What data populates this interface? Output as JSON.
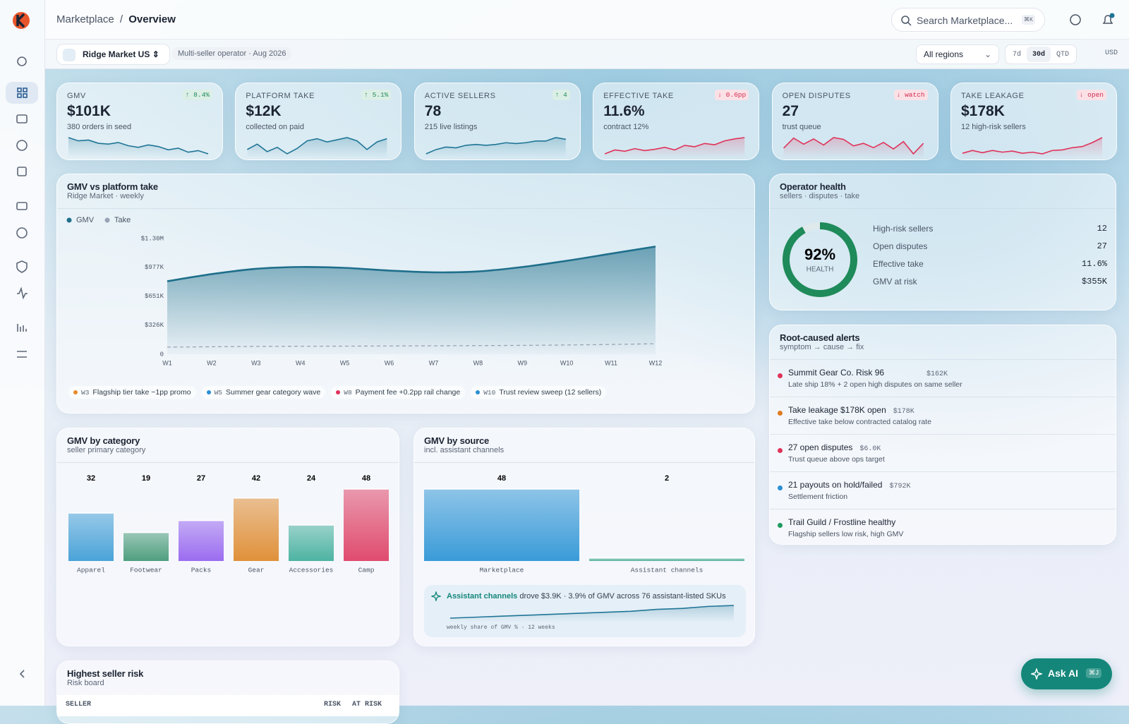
{
  "header": {
    "breadcrumb": [
      "Marketplace",
      "Overview"
    ],
    "separator": "/",
    "search": "Search Marketplace...",
    "search_key": "⌘K"
  },
  "toolbar": {
    "market": "Ridge Market US",
    "meta": "Multi-seller operator · Aug 2026",
    "region": "All regions",
    "ranges": [
      "7d",
      "30d",
      "QTD"
    ],
    "active_range": 1,
    "currency": "USD"
  },
  "kpis": [
    {
      "label": "GMV",
      "delta": "↑ 8.4%",
      "tone": "good",
      "value": "$101K",
      "sub": "380 orders in seed",
      "color": "#1f7596",
      "spark": [
        6.2,
        5.8,
        5.9,
        5.5,
        5.4,
        5.6,
        5.2,
        5.0,
        5.3,
        5.1,
        4.7,
        4.9,
        4.4,
        4.6,
        4.2
      ]
    },
    {
      "label": "PLATFORM TAKE",
      "delta": "↑ 5.1%",
      "tone": "good",
      "value": "$12K",
      "sub": "collected on paid",
      "color": "#1f7596",
      "spark": [
        4.8,
        5.3,
        4.6,
        5.0,
        4.4,
        4.9,
        5.6,
        5.8,
        5.5,
        5.7,
        5.9,
        5.6,
        4.8,
        5.5,
        5.8
      ]
    },
    {
      "label": "ACTIVE SELLERS",
      "delta": "↑ 4",
      "tone": "good",
      "value": "78",
      "sub": "215 live listings",
      "color": "#1f7596",
      "spark": [
        4.0,
        4.5,
        4.8,
        4.7,
        5.0,
        5.1,
        5.0,
        5.1,
        5.3,
        5.2,
        5.3,
        5.5,
        5.5,
        5.9,
        5.7
      ]
    },
    {
      "label": "EFFECTIVE TAKE",
      "delta": "↓ 0.6pp",
      "tone": "bad",
      "value": "11.6%",
      "sub": "contract 12%",
      "color": "#e0325a",
      "spark": [
        4.2,
        4.8,
        4.6,
        5.0,
        4.7,
        4.9,
        5.2,
        4.8,
        5.5,
        5.3,
        5.8,
        5.6,
        6.2,
        6.5,
        6.7
      ]
    },
    {
      "label": "OPEN DISPUTES",
      "delta": "↓ watch",
      "tone": "bad",
      "value": "27",
      "sub": "trust queue",
      "color": "#e0325a",
      "spark": [
        4.5,
        6.8,
        5.4,
        6.6,
        5.2,
        6.9,
        6.5,
        5.0,
        5.6,
        4.6,
        5.8,
        4.3,
        6.0,
        3.2,
        5.6
      ]
    },
    {
      "label": "TAKE LEAKAGE",
      "delta": "↓ open",
      "tone": "bad",
      "value": "$178K",
      "sub": "12 high-risk sellers",
      "color": "#e0325a",
      "spark": [
        4.4,
        4.9,
        4.5,
        4.9,
        4.6,
        4.8,
        4.4,
        4.6,
        4.3,
        4.9,
        5.0,
        5.4,
        5.6,
        6.3,
        7.2
      ]
    }
  ],
  "chart_data": [
    {
      "type": "line",
      "title": "GMV vs platform take",
      "subtitle": "Ridge Market · weekly",
      "categories": [
        "W1",
        "W2",
        "W3",
        "W4",
        "W5",
        "W6",
        "W7",
        "W8",
        "W9",
        "W10",
        "W11",
        "W12"
      ],
      "series": [
        {
          "name": "GMV",
          "color": "#1f6f8b",
          "values": [
            820000,
            900000,
            960000,
            980000,
            970000,
            940000,
            920000,
            930000,
            980000,
            1050000,
            1130000,
            1210000
          ]
        },
        {
          "name": "Take",
          "color": "#9aa3b5",
          "dashed": true,
          "values": [
            80000,
            84000,
            88000,
            90000,
            91000,
            93000,
            95000,
            97000,
            100000,
            104000,
            110000,
            118000
          ]
        }
      ],
      "ylim": [
        0,
        1300000
      ],
      "yticks": [
        {
          "value": 0,
          "label": "0"
        },
        {
          "value": 326000,
          "label": "$326K"
        },
        {
          "value": 651000,
          "label": "$651K"
        },
        {
          "value": 977000,
          "label": "$977K"
        },
        {
          "value": 1300000,
          "label": "$1.30M"
        }
      ],
      "grid": false,
      "annotations": [
        {
          "week": "W3",
          "text": "Flagship tier take −1pp promo",
          "color": "#e8892b"
        },
        {
          "week": "W5",
          "text": "Summer gear category wave",
          "color": "#2b8fd4"
        },
        {
          "week": "W8",
          "text": "Payment fee +0.2pp rail change",
          "color": "#e0325a"
        },
        {
          "week": "W10",
          "text": "Trust review sweep (12 sellers)",
          "color": "#2b8fd4"
        }
      ]
    },
    {
      "type": "bar",
      "title": "GMV by category",
      "subtitle": "seller primary category",
      "categories": [
        "Apparel",
        "Footwear",
        "Packs",
        "Gear",
        "Accessories",
        "Camp"
      ],
      "values": [
        32,
        19,
        27,
        42,
        24,
        48
      ],
      "colors": [
        "#4aa3d8",
        "#4f9f7f",
        "#9b6cf0",
        "#e0913a",
        "#4db3a2",
        "#e04b6e"
      ]
    },
    {
      "type": "bar",
      "title": "GMV by source",
      "subtitle": "incl. assistant channels",
      "categories": [
        "Marketplace",
        "Assistant channels"
      ],
      "values": [
        48,
        2
      ],
      "colors": [
        "#3a9bd8",
        "#5ab3a0"
      ],
      "note": {
        "highlight": "Assistant channels",
        "text": "drove $3.9K · 3.9% of GMV across 76 assistant-listed SKUs",
        "caption": "weekly share of GMV % · 12 weeks",
        "values": [
          2.6,
          2.7,
          2.8,
          2.9,
          3.0,
          3.1,
          3.2,
          3.3,
          3.5,
          3.6,
          3.8,
          3.9
        ]
      }
    }
  ],
  "health": {
    "title": "Operator health",
    "subtitle": "sellers · disputes · take",
    "score": 92,
    "score_label": "92%",
    "score_caption": "HEALTH",
    "rows": [
      [
        "High-risk sellers",
        "12"
      ],
      [
        "Open disputes",
        "27"
      ],
      [
        "Effective take",
        "11.6%"
      ],
      [
        "GMV at risk",
        "$355K"
      ]
    ]
  },
  "alerts": {
    "title": "Root-caused alerts",
    "subtitle": "symptom → cause → fix",
    "items": [
      {
        "color": "#e0325a",
        "title": "Summit Gear Co. Risk 96",
        "amount": "$162K",
        "desc": "Late ship 18% + 2 open high disputes on same seller"
      },
      {
        "color": "#e07a1f",
        "title": "Take leakage $178K open",
        "amount": "$178K",
        "desc": "Effective take below contracted catalog rate"
      },
      {
        "color": "#e0325a",
        "title": "27 open disputes",
        "amount": "$6.0K",
        "desc": "Trust queue above ops target"
      },
      {
        "color": "#2b8fd4",
        "title": "21 payouts on hold/failed",
        "amount": "$792K",
        "desc": "Settlement friction"
      },
      {
        "color": "#1f9a60",
        "title": "Trail Guild / Frostline healthy",
        "desc": "Flagship sellers low risk, high GMV"
      }
    ]
  },
  "risk_table": {
    "title": "Highest seller risk",
    "subtitle": "Risk board",
    "columns": [
      "SELLER",
      "RISK",
      "AT RISK"
    ]
  },
  "ask_ai": {
    "label": "Ask AI",
    "key": "⌘J"
  }
}
